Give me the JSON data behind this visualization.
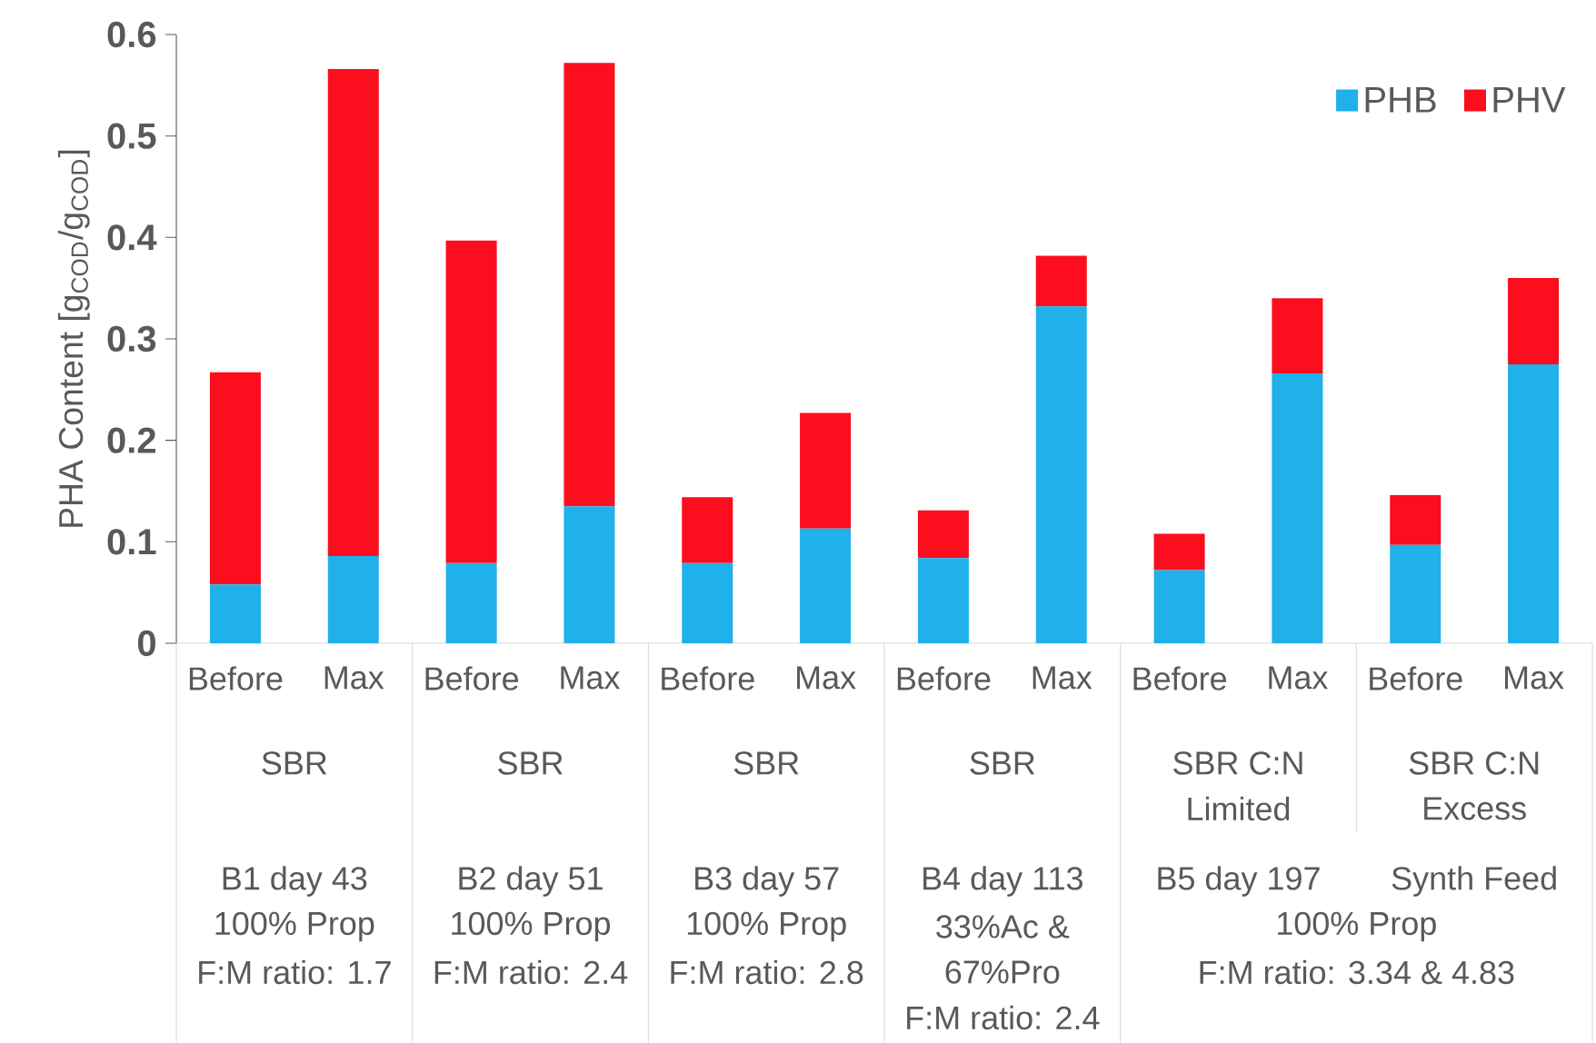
{
  "chart_data": {
    "type": "bar",
    "stacked": true,
    "ylabel": "PHA Content [g$_{COD}$/g$_{COD}$]",
    "categories": [
      "Before",
      "Max",
      "Before",
      "Max",
      "Before",
      "Max",
      "Before",
      "Max",
      "Before",
      "Max",
      "Before",
      "Max"
    ],
    "series": [
      {
        "name": "PHB",
        "color": "#20b0ea",
        "values": [
          0.058,
          0.086,
          0.079,
          0.135,
          0.079,
          0.113,
          0.084,
          0.332,
          0.072,
          0.266,
          0.097,
          0.275
        ]
      },
      {
        "name": "PHV",
        "color": "#fc0e1e",
        "values": [
          0.209,
          0.48,
          0.318,
          0.437,
          0.065,
          0.114,
          0.047,
          0.05,
          0.036,
          0.074,
          0.049,
          0.085
        ]
      }
    ],
    "ylim": [
      0,
      0.6
    ],
    "yticks": [
      0,
      0.1,
      0.2,
      0.3,
      0.4,
      0.5,
      0.6
    ],
    "legend": "top right",
    "annotations": [
      "SBR",
      "SBR",
      "SBR",
      "SBR",
      "SBR C:N",
      "Limited",
      "SBR C:N",
      "Excess",
      "B1 day 43",
      "100% Prop",
      "F:M ratio: 1.7",
      "B2 day 51",
      "100% Prop",
      "F:M ratio: 2.4",
      "B3 day 57",
      "100% Prop",
      "F:M ratio: 2.8",
      "B4 day 113",
      "33%Ac &",
      "67%Pro",
      "F:M ratio: 2.4",
      "B5 day 197",
      "Synth Feed",
      "100% Prop",
      "F:M ratio: 3.34 & 4.83"
    ]
  }
}
